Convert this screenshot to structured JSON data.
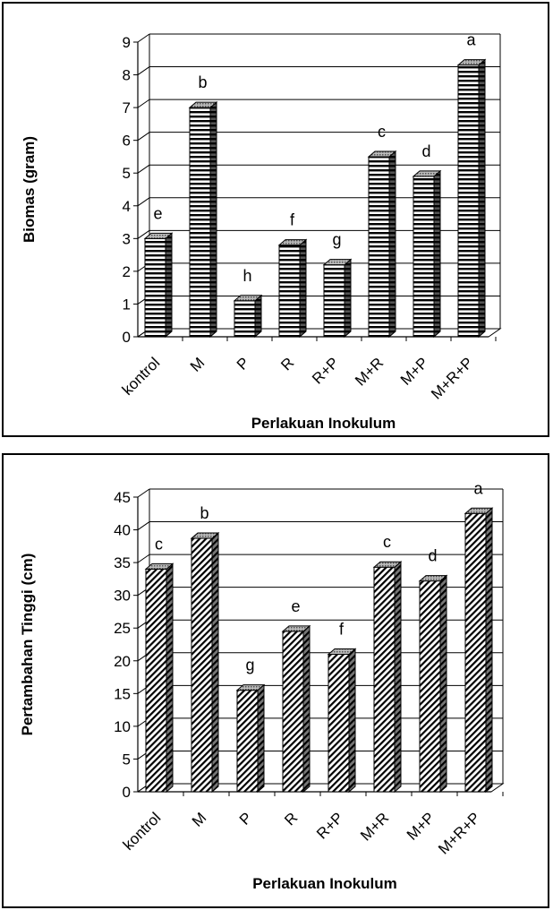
{
  "chart_data": [
    {
      "type": "bar",
      "title": "",
      "xlabel": "Perlakuan Inokulum",
      "ylabel": "Biomas (gram)",
      "ylim": [
        0,
        9
      ],
      "yticks": [
        "0",
        "1",
        "2",
        "3",
        "4",
        "5",
        "6",
        "7",
        "8",
        "9"
      ],
      "grid": true,
      "bar_pattern": "horizontal-stripes",
      "categories": [
        "kontrol",
        "M",
        "P",
        "R",
        "R+P",
        "M+R",
        "M+P",
        "M+R+P"
      ],
      "values": [
        3.0,
        7.0,
        1.1,
        2.8,
        2.2,
        5.5,
        4.9,
        8.3
      ],
      "significance_letters": [
        "e",
        "b",
        "h",
        "f",
        "g",
        "c",
        "d",
        "a"
      ]
    },
    {
      "type": "bar",
      "title": "",
      "xlabel": "Perlakuan Inokulum",
      "ylabel": "Pertambahan Tinggi (cm)",
      "ylim": [
        0,
        45
      ],
      "yticks": [
        "0",
        "5",
        "10",
        "15",
        "20",
        "25",
        "30",
        "35",
        "40",
        "45"
      ],
      "grid": true,
      "bar_pattern": "diagonal-hatch",
      "categories": [
        "kontrol",
        "M",
        "P",
        "R",
        "R+P",
        "M+R",
        "M+P",
        "M+R+P"
      ],
      "values": [
        34.0,
        38.7,
        15.5,
        24.5,
        21.0,
        34.3,
        32.2,
        42.5
      ],
      "significance_letters": [
        "c",
        "b",
        "g",
        "e",
        "f",
        "c",
        "d",
        "a"
      ]
    }
  ]
}
